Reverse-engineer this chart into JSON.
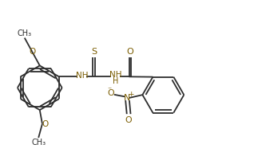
{
  "bg_color": "#ffffff",
  "line_color": "#2d2d2d",
  "text_color": "#2d2d2d",
  "heteroatom_color": "#7a5c00",
  "lw": 1.3,
  "figsize": [
    3.18,
    2.11
  ],
  "dpi": 100,
  "xlim": [
    0,
    10
  ],
  "ylim": [
    -3.2,
    3.2
  ]
}
